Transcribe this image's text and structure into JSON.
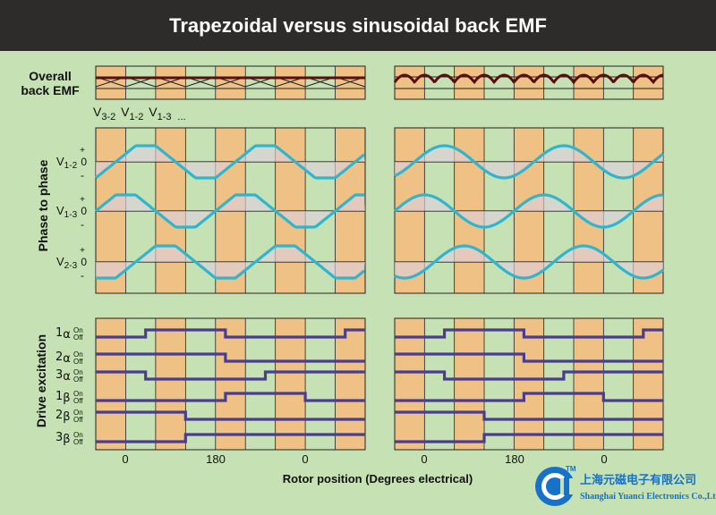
{
  "title": "Trapezoidal versus sinusoidal back EMF",
  "colors": {
    "title_bg": "#2d2c2b",
    "background": "#c6e2b4",
    "stripe": "#f0c184",
    "wave": "#2fb5cc",
    "drive": "#4a3c90",
    "shade": "#ddd0dc",
    "envelope": "#5a0e10",
    "logo_blue": "#1572c8"
  },
  "overall": {
    "label_line1": "Overall",
    "label_line2": "back EMF"
  },
  "phase_sequence_label": {
    "v32": "V",
    "v32_sub": "3-2",
    "v12": "V",
    "v12_sub": "1-2",
    "v13": "V",
    "v13_sub": "1-3",
    "ellipsis": "..."
  },
  "phase_to_phase": {
    "axis_label": "Phase to phase",
    "rows": [
      {
        "name": "V",
        "sub": "1-2",
        "plus": "+",
        "zero": "0",
        "minus": "-"
      },
      {
        "name": "V",
        "sub": "1-3",
        "plus": "+",
        "zero": "0",
        "minus": "-"
      },
      {
        "name": "V",
        "sub": "2-3",
        "plus": "+",
        "zero": "0",
        "minus": "-"
      }
    ]
  },
  "drive_excitation": {
    "axis_label": "Drive excitation",
    "on_label": "On",
    "off_label": "Off",
    "rows": [
      {
        "num": "1",
        "greek": "α",
        "left": [
          0,
          1,
          1,
          0,
          0,
          0,
          1
        ],
        "right": [
          0,
          1,
          1,
          0,
          0,
          0,
          1
        ]
      },
      {
        "num": "2",
        "greek": "α",
        "left": [
          1,
          1,
          1,
          0,
          0,
          0,
          0
        ],
        "right": [
          1,
          1,
          1,
          0,
          0,
          0,
          0
        ]
      },
      {
        "num": "3",
        "greek": "α",
        "left": [
          1,
          0,
          0,
          0,
          1,
          1,
          1
        ],
        "right": [
          1,
          0,
          0,
          0,
          1,
          1,
          1
        ]
      },
      {
        "num": "1",
        "greek": "β",
        "left": [
          0,
          0,
          0,
          1,
          1,
          0,
          0
        ],
        "right": [
          0,
          0,
          0,
          1,
          1,
          0,
          0
        ]
      },
      {
        "num": "2",
        "greek": "β",
        "left": [
          1,
          1,
          0,
          0,
          0,
          0,
          0
        ],
        "right": [
          1,
          1,
          0,
          0,
          0,
          0,
          0
        ]
      },
      {
        "num": "3",
        "greek": "β",
        "left": [
          0,
          0,
          1,
          1,
          1,
          1,
          1
        ],
        "right": [
          0,
          0,
          1,
          1,
          1,
          1,
          1
        ]
      }
    ]
  },
  "x_ticks": [
    "0",
    "180",
    "0"
  ],
  "x_axis_label": "Rotor position (Degrees electrical)",
  "logo": {
    "tm": "TM",
    "company_cn": "上海元磁电子有限公司",
    "company_en": "Shanghai Yuanci Electronics Co.,Ltd."
  }
}
